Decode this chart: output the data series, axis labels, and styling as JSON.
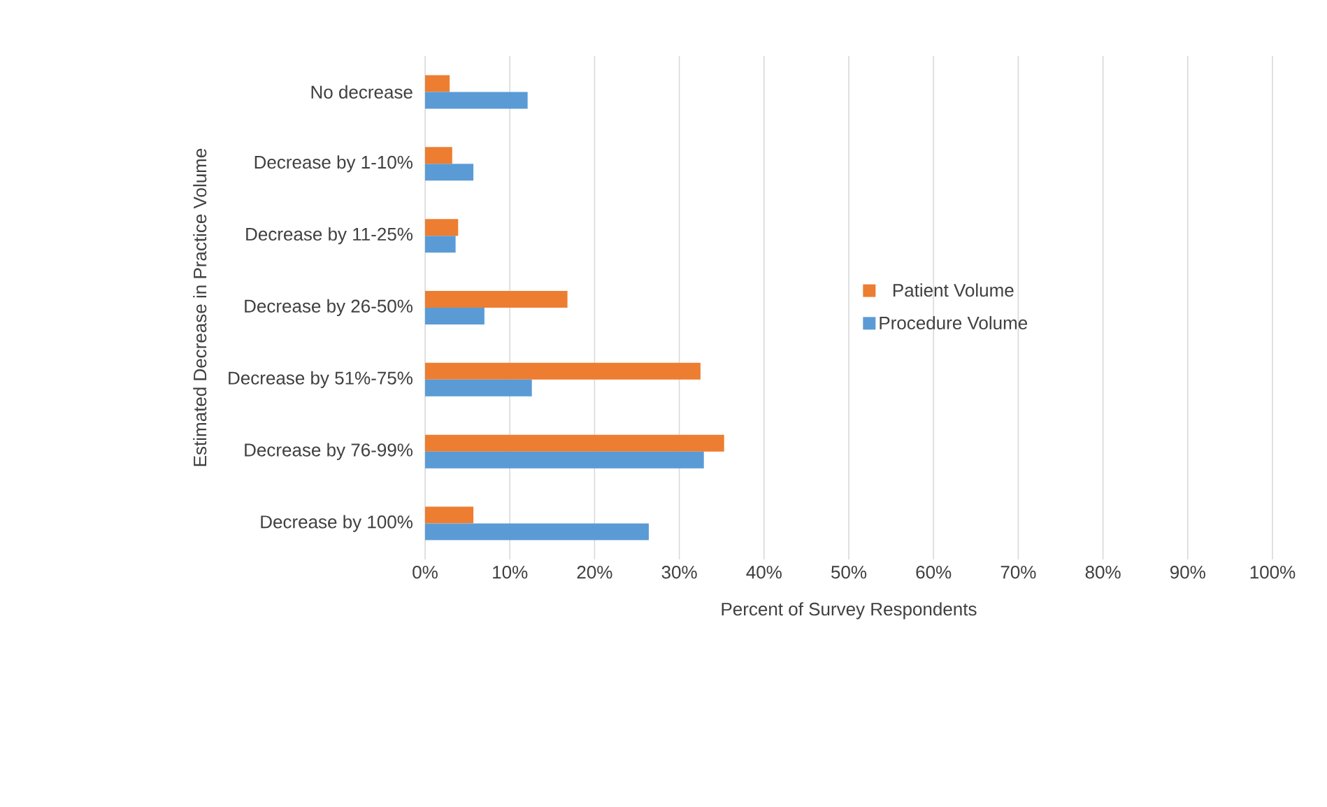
{
  "chart_data": {
    "type": "bar",
    "orientation": "horizontal",
    "xlabel": "Percent of Survey Respondents",
    "ylabel": "Estimated Decrease  in Practice Volume",
    "categories": [
      "No decrease",
      "Decrease by 1-10%",
      "Decrease by 11-25%",
      "Decrease by 26-50%",
      "Decrease by 51%-75%",
      "Decrease by 76-99%",
      "Decrease by 100%"
    ],
    "series": [
      {
        "name": "Patient Volume",
        "color": "#ed7d31",
        "values": [
          2.9,
          3.2,
          3.9,
          16.8,
          32.5,
          35.3,
          5.7
        ]
      },
      {
        "name": "Procedure Volume",
        "color": "#5b9bd5",
        "values": [
          12.1,
          5.7,
          3.6,
          7.0,
          12.6,
          32.9,
          26.4
        ]
      }
    ],
    "xlim": [
      0,
      100
    ],
    "xticks": [
      {
        "value": 0,
        "label": "0%"
      },
      {
        "value": 10,
        "label": "10%"
      },
      {
        "value": 20,
        "label": "20%"
      },
      {
        "value": 30,
        "label": "30%"
      },
      {
        "value": 40,
        "label": "40%"
      },
      {
        "value": 50,
        "label": "50%"
      },
      {
        "value": 60,
        "label": "60%"
      },
      {
        "value": 70,
        "label": "70%"
      },
      {
        "value": 80,
        "label": "80%"
      },
      {
        "value": 90,
        "label": "90%"
      },
      {
        "value": 100,
        "label": "100%"
      }
    ],
    "grid": "x",
    "legend": "right"
  }
}
